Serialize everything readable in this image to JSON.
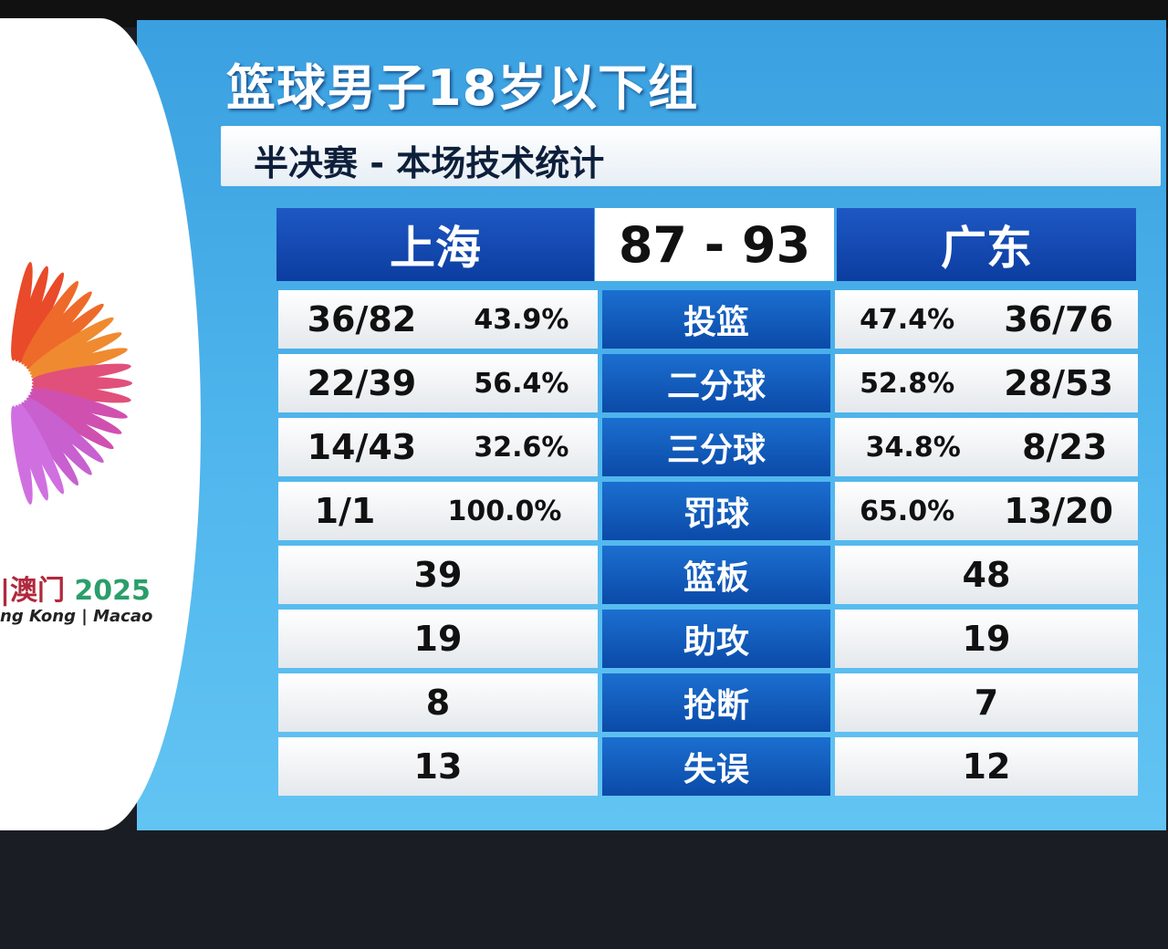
{
  "logo": {
    "cn": "|澳门",
    "year": "2025",
    "en": "ng Kong | Macao"
  },
  "header": {
    "title": "篮球男子18岁以下组",
    "subtitle": "半决赛 - 本场技术统计"
  },
  "teams": {
    "home": "上海",
    "away": "广东",
    "score": "87 - 93"
  },
  "rows": [
    {
      "label": "投篮",
      "home": "36/82",
      "home_pct": "43.9%",
      "away_pct": "47.4%",
      "away": "36/76"
    },
    {
      "label": "二分球",
      "home": "22/39",
      "home_pct": "56.4%",
      "away_pct": "52.8%",
      "away": "28/53"
    },
    {
      "label": "三分球",
      "home": "14/43",
      "home_pct": "32.6%",
      "away_pct": "34.8%",
      "away": "8/23"
    },
    {
      "label": "罚球",
      "home": "1/1",
      "home_pct": "100.0%",
      "away_pct": "65.0%",
      "away": "13/20"
    },
    {
      "label": "篮板",
      "home": "39",
      "away": "48"
    },
    {
      "label": "助攻",
      "home": "19",
      "away": "19"
    },
    {
      "label": "抢断",
      "home": "8",
      "away": "7"
    },
    {
      "label": "失误",
      "home": "13",
      "away": "12"
    }
  ],
  "colors": {
    "panel": "#52b8ee",
    "team_bar": "#1e58c4",
    "label_bar": "#0b4aa8"
  }
}
